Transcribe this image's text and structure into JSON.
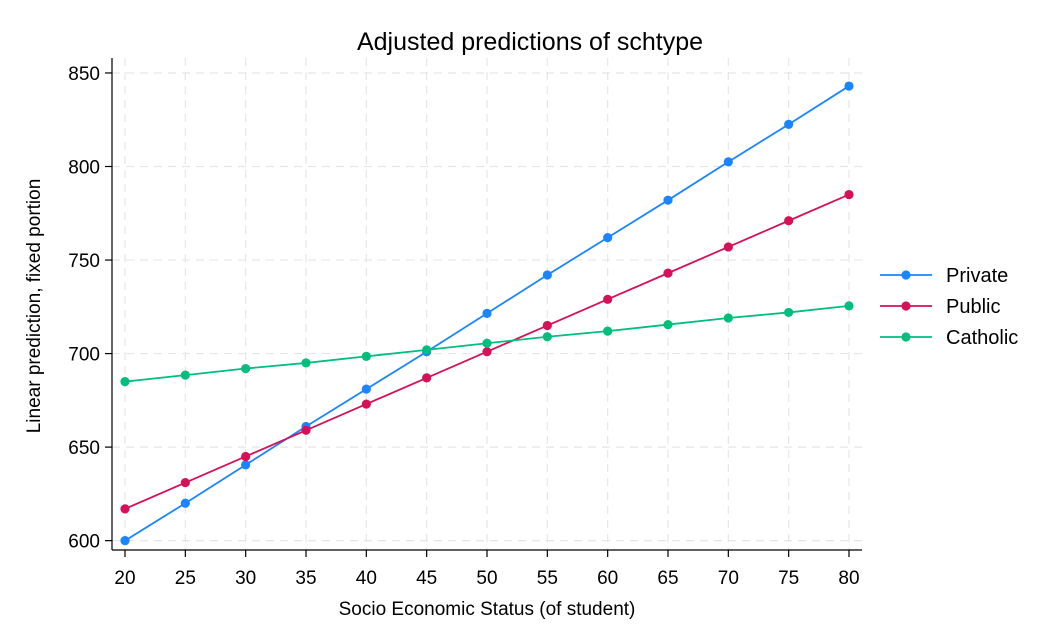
{
  "chart_data": {
    "type": "line",
    "title": "Adjusted predictions of schtype",
    "xlabel": "Socio Economic Status (of student)",
    "ylabel": "Linear prediction, fixed portion",
    "x": [
      20,
      25,
      30,
      35,
      40,
      45,
      50,
      55,
      60,
      65,
      70,
      75,
      80
    ],
    "x_ticks": [
      "20",
      "25",
      "30",
      "35",
      "40",
      "45",
      "50",
      "55",
      "60",
      "65",
      "70",
      "75",
      "80"
    ],
    "y_ticks": [
      "600",
      "650",
      "700",
      "750",
      "800",
      "850"
    ],
    "xlim": [
      20,
      80
    ],
    "ylim": [
      595,
      858
    ],
    "grid": true,
    "legend_position": "right",
    "series": [
      {
        "name": "Private",
        "color": "#1a85ff",
        "values": [
          600,
          620,
          640.5,
          661,
          681,
          701,
          721.5,
          742,
          762,
          782,
          802.5,
          822.5,
          843
        ]
      },
      {
        "name": "Public",
        "color": "#d41159",
        "values": [
          617,
          631,
          645,
          659,
          673,
          687,
          701,
          715,
          729,
          743,
          757,
          771,
          785
        ]
      },
      {
        "name": "Catholic",
        "color": "#00bf7d",
        "values": [
          685,
          688.5,
          692,
          695,
          698.5,
          702,
          705.5,
          709,
          712,
          715.5,
          719,
          722,
          725.5
        ]
      }
    ]
  }
}
